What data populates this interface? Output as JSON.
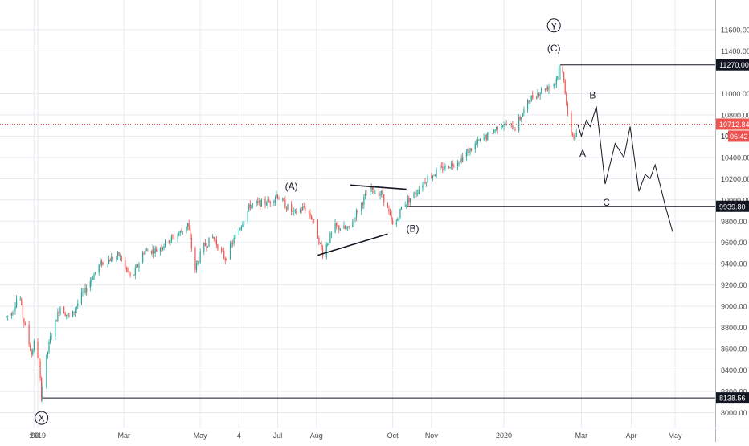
{
  "chart_data": {
    "type": "candlestick",
    "title": "",
    "xlabel": "",
    "ylabel": "",
    "ylim": [
      7860,
      11880
    ],
    "y_ticks": [
      {
        "value": 11600,
        "label": "11600.00"
      },
      {
        "value": 11400,
        "label": "11400.00"
      },
      {
        "value": 11000,
        "label": "11000.00"
      },
      {
        "value": 10800,
        "label": "10800.00"
      },
      {
        "value": 10600,
        "label": "10600.00"
      },
      {
        "value": 10400,
        "label": "10400.00"
      },
      {
        "value": 10200,
        "label": "10200.00"
      },
      {
        "value": 10000,
        "label": "10000.00"
      },
      {
        "value": 9800,
        "label": "9800.00"
      },
      {
        "value": 9600,
        "label": "9600.00"
      },
      {
        "value": 9400,
        "label": "9400.00"
      },
      {
        "value": 9200,
        "label": "9200.00"
      },
      {
        "value": 9000,
        "label": "9000.00"
      },
      {
        "value": 8800,
        "label": "8800.00"
      },
      {
        "value": 8600,
        "label": "8600.00"
      },
      {
        "value": 8400,
        "label": "8400.00"
      },
      {
        "value": 8200,
        "label": "8200.00"
      },
      {
        "value": 8000,
        "label": "8000.00"
      }
    ],
    "x_ticks": [
      {
        "day": -3,
        "label": ":00"
      },
      {
        "day": 0,
        "label": "2019"
      },
      {
        "day": 69,
        "label": "Mar"
      },
      {
        "day": 130,
        "label": "May"
      },
      {
        "day": 161,
        "label": "4"
      },
      {
        "day": 192,
        "label": "Jul"
      },
      {
        "day": 223,
        "label": "Aug"
      },
      {
        "day": 284,
        "label": "Oct"
      },
      {
        "day": 315,
        "label": "Nov"
      },
      {
        "day": 373,
        "label": "2020"
      },
      {
        "day": 435,
        "label": "Mar"
      },
      {
        "day": 475,
        "label": "Apr"
      },
      {
        "day": 510,
        "label": "May"
      }
    ],
    "price_path": [
      [
        -25,
        8900
      ],
      [
        -20,
        8950
      ],
      [
        -15,
        9150
      ],
      [
        -12,
        8900
      ],
      [
        -8,
        8700
      ],
      [
        -5,
        8550
      ],
      [
        -2,
        8700
      ],
      [
        1,
        8450
      ],
      [
        3,
        8150
      ],
      [
        6,
        8450
      ],
      [
        10,
        8700
      ],
      [
        18,
        9000
      ],
      [
        26,
        8880
      ],
      [
        35,
        9100
      ],
      [
        50,
        9400
      ],
      [
        65,
        9480
      ],
      [
        75,
        9250
      ],
      [
        85,
        9520
      ],
      [
        95,
        9530
      ],
      [
        105,
        9620
      ],
      [
        115,
        9700
      ],
      [
        120,
        9780
      ],
      [
        123,
        9550
      ],
      [
        126,
        9350
      ],
      [
        132,
        9550
      ],
      [
        140,
        9650
      ],
      [
        150,
        9450
      ],
      [
        160,
        9700
      ],
      [
        170,
        9950
      ],
      [
        185,
        9980
      ],
      [
        191,
        10050
      ],
      [
        198,
        9950
      ],
      [
        205,
        9870
      ],
      [
        213,
        9930
      ],
      [
        220,
        9820
      ],
      [
        228,
        9500
      ],
      [
        238,
        9750
      ],
      [
        248,
        9720
      ],
      [
        258,
        9950
      ],
      [
        266,
        10100
      ],
      [
        276,
        10050
      ],
      [
        281,
        9870
      ],
      [
        285,
        9720
      ],
      [
        291,
        9930
      ],
      [
        296,
        9990
      ],
      [
        303,
        10080
      ],
      [
        312,
        10210
      ],
      [
        325,
        10300
      ],
      [
        338,
        10380
      ],
      [
        350,
        10520
      ],
      [
        362,
        10620
      ],
      [
        371,
        10720
      ],
      [
        382,
        10680
      ],
      [
        394,
        10950
      ],
      [
        404,
        11040
      ],
      [
        414,
        11100
      ],
      [
        418,
        11270
      ],
      [
        421,
        11150
      ],
      [
        424,
        10780
      ],
      [
        427,
        10640
      ],
      [
        430,
        10560
      ],
      [
        432,
        10712.84
      ]
    ],
    "volatility": 70,
    "projection_path": [
      [
        432,
        10712.84
      ],
      [
        435,
        10600
      ],
      [
        439,
        10750
      ],
      [
        442,
        10690
      ],
      [
        447,
        10880
      ],
      [
        454,
        10150
      ],
      [
        462,
        10530
      ],
      [
        469,
        10400
      ],
      [
        474,
        10690
      ],
      [
        481,
        10080
      ],
      [
        486,
        10240
      ],
      [
        490,
        10200
      ],
      [
        494,
        10330
      ],
      [
        502,
        9950
      ],
      [
        508,
        9700
      ]
    ],
    "horizontal_levels": [
      {
        "value": 11270.0,
        "label": "11270.00",
        "from_day": 418
      },
      {
        "value": 9939.8,
        "label": "9939.80",
        "from_day": 296
      },
      {
        "value": 8138.56,
        "label": "8138.56",
        "from_day": 3
      }
    ],
    "current_price": {
      "value": 10712.84,
      "label": "10712.84",
      "countdown": "06:42",
      "color": "#ef5350"
    },
    "partial_tick_label": "10",
    "triangle_upper": [
      [
        250,
        10140
      ],
      [
        295,
        10100
      ]
    ],
    "triangle_lower": [
      [
        224,
        9480
      ],
      [
        280,
        9680
      ]
    ],
    "wave_labels": [
      {
        "text": "(A)",
        "day": 203,
        "value": 10130
      },
      {
        "text": "(B)",
        "day": 300,
        "value": 9735
      },
      {
        "text": "(C)",
        "day": 413,
        "value": 11430
      },
      {
        "text": "Y",
        "day": 413,
        "value": 11640,
        "circled": true
      },
      {
        "text": "X",
        "day": 3,
        "value": 7950,
        "circled": true
      },
      {
        "text": "A",
        "day": 436,
        "value": 10440
      },
      {
        "text": "B",
        "day": 444,
        "value": 10990
      },
      {
        "text": "C",
        "day": 455,
        "value": 9980
      }
    ],
    "colors": {
      "up": "#26a69a",
      "down": "#ef5350",
      "line": "#131722",
      "grid": "#e8eaf0",
      "axis_text": "#4a4a4a"
    },
    "grid": true,
    "legend": "none"
  }
}
